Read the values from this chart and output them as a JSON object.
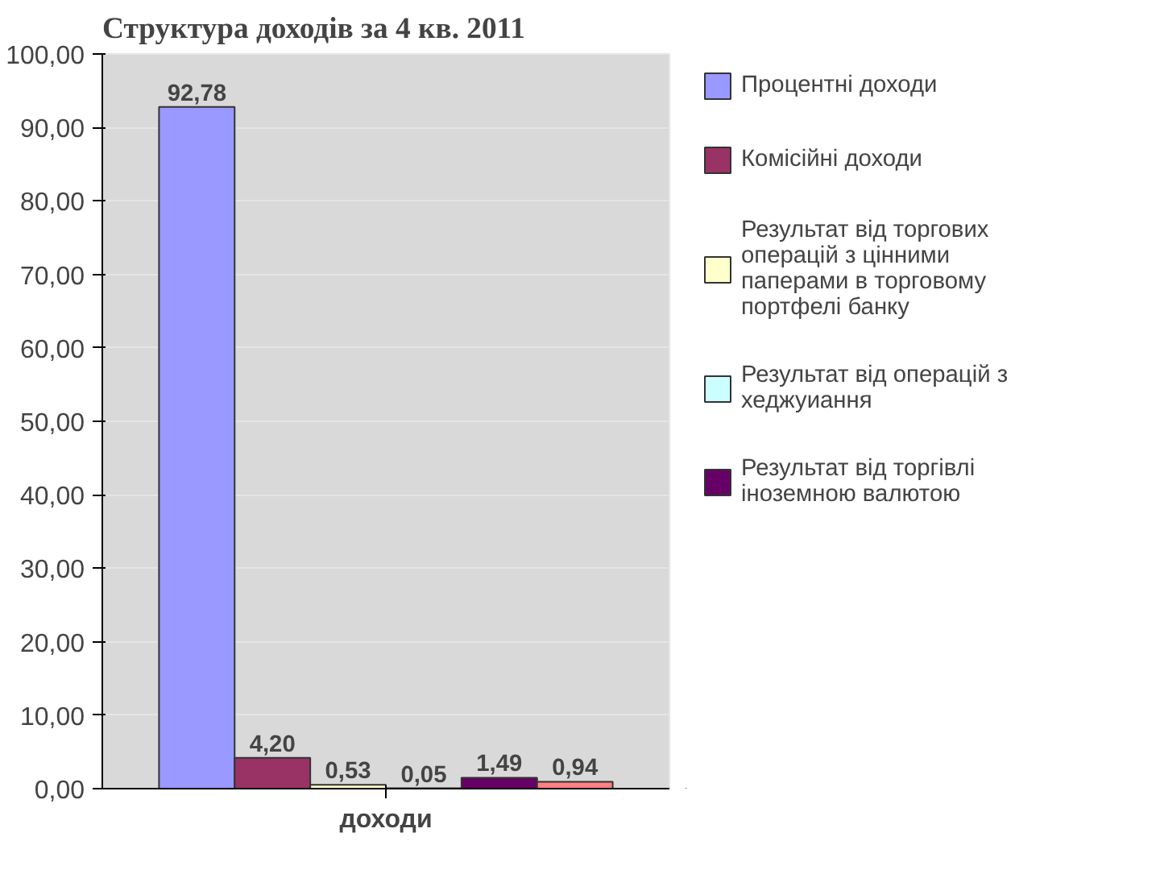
{
  "chart_data": {
    "type": "bar",
    "title": "Структура доходів за 4 кв. 2011",
    "categories": [
      "доходи"
    ],
    "series": [
      {
        "name": "Процентні доходи",
        "color": "#9999ff",
        "values": [
          92.78
        ],
        "value_labels": [
          "92,78"
        ]
      },
      {
        "name": "Комісійні доходи",
        "color": "#993366",
        "values": [
          4.2
        ],
        "value_labels": [
          "4,20"
        ]
      },
      {
        "name": "Результат від торгових операцій з цінними паперами в торговому портфелі банку",
        "color": "#ffffcc",
        "values": [
          0.53
        ],
        "value_labels": [
          "0,53"
        ]
      },
      {
        "name": "Результат від операцій з хеджуиання",
        "color": "#ccffff",
        "values": [
          0.05
        ],
        "value_labels": [
          "0,05"
        ]
      },
      {
        "name": "Результат від торгівлі іноземною валютою",
        "color": "#660066",
        "values": [
          1.49
        ],
        "value_labels": [
          "1,49"
        ]
      },
      {
        "color": "#ff8080",
        "values": [
          0.94
        ],
        "value_labels": [
          "0,94"
        ]
      }
    ],
    "ylim": [
      0,
      100
    ],
    "yticks": [
      {
        "value": 0,
        "label": "0,00"
      },
      {
        "value": 10,
        "label": "10,00"
      },
      {
        "value": 20,
        "label": "20,00"
      },
      {
        "value": 30,
        "label": "30,00"
      },
      {
        "value": 40,
        "label": "40,00"
      },
      {
        "value": 50,
        "label": "50,00"
      },
      {
        "value": 60,
        "label": "60,00"
      },
      {
        "value": 70,
        "label": "70,00"
      },
      {
        "value": 80,
        "label": "80,00"
      },
      {
        "value": 90,
        "label": "90,00"
      },
      {
        "value": 100,
        "label": "100,00"
      }
    ],
    "grid": "y",
    "legend": "right"
  }
}
